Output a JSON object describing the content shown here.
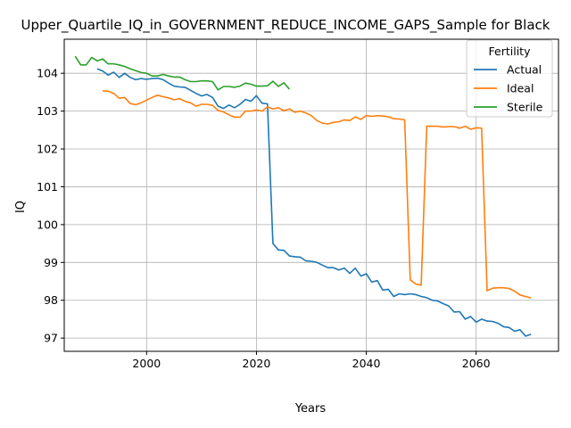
{
  "chart_data": {
    "type": "line",
    "title": "Upper_Quartile_IQ_in_GOVERNMENT_REDUCE_INCOME_GAPS_Sample for Black",
    "xlabel": "Years",
    "ylabel": "IQ",
    "xlim": [
      1985,
      2075
    ],
    "ylim": [
      96.65,
      104.9
    ],
    "xticks": [
      2000,
      2020,
      2040,
      2060
    ],
    "yticks": [
      97,
      98,
      99,
      100,
      101,
      102,
      103,
      104
    ],
    "grid": true,
    "legend": {
      "title": "Fertility",
      "placement": "top-right"
    },
    "series": [
      {
        "name": "Actual",
        "color": "#1f77b4",
        "x": [
          1991,
          1992,
          1993,
          1994,
          1995,
          1996,
          1997,
          1998,
          1999,
          2000,
          2001,
          2002,
          2003,
          2004,
          2005,
          2006,
          2007,
          2008,
          2009,
          2010,
          2011,
          2012,
          2013,
          2014,
          2015,
          2016,
          2017,
          2018,
          2019,
          2020,
          2021,
          2022,
          2023,
          2024,
          2025,
          2026,
          2027,
          2028,
          2029,
          2030,
          2031,
          2032,
          2033,
          2034,
          2035,
          2036,
          2037,
          2038,
          2039,
          2040,
          2041,
          2042,
          2043,
          2044,
          2045,
          2046,
          2047,
          2048,
          2049,
          2050,
          2051,
          2052,
          2053,
          2054,
          2055,
          2056,
          2057,
          2058,
          2059,
          2060,
          2061,
          2062,
          2063,
          2064,
          2065,
          2066,
          2067,
          2068,
          2069,
          2070
        ],
        "values": [
          104.12,
          104.06,
          103.95,
          104.03,
          103.89,
          104.0,
          103.89,
          103.83,
          103.86,
          103.84,
          103.86,
          103.87,
          103.83,
          103.74,
          103.66,
          103.64,
          103.63,
          103.55,
          103.47,
          103.4,
          103.44,
          103.36,
          103.13,
          103.07,
          103.16,
          103.09,
          103.18,
          103.31,
          103.26,
          103.41,
          103.21,
          103.19,
          99.5,
          99.33,
          99.32,
          99.17,
          99.15,
          99.14,
          99.04,
          99.03,
          99.0,
          98.93,
          98.86,
          98.86,
          98.8,
          98.85,
          98.71,
          98.85,
          98.64,
          98.7,
          98.48,
          98.52,
          98.27,
          98.29,
          98.1,
          98.17,
          98.15,
          98.17,
          98.15,
          98.1,
          98.07,
          98.0,
          97.98,
          97.91,
          97.85,
          97.69,
          97.7,
          97.5,
          97.57,
          97.42,
          97.5,
          97.45,
          97.44,
          97.39,
          97.3,
          97.28,
          97.18,
          97.22,
          97.05,
          97.1
        ]
      },
      {
        "name": "Ideal",
        "color": "#ff7f0e",
        "x": [
          1992,
          1993,
          1994,
          1995,
          1996,
          1997,
          1998,
          1999,
          2000,
          2001,
          2002,
          2003,
          2004,
          2005,
          2006,
          2007,
          2008,
          2009,
          2010,
          2011,
          2012,
          2013,
          2014,
          2015,
          2016,
          2017,
          2018,
          2019,
          2020,
          2021,
          2022,
          2023,
          2024,
          2025,
          2026,
          2027,
          2028,
          2029,
          2030,
          2031,
          2032,
          2033,
          2034,
          2035,
          2036,
          2037,
          2038,
          2039,
          2040,
          2041,
          2042,
          2043,
          2044,
          2045,
          2046,
          2047,
          2048,
          2049,
          2050,
          2051,
          2052,
          2053,
          2054,
          2055,
          2056,
          2057,
          2058,
          2059,
          2060,
          2061,
          2062,
          2063,
          2064,
          2065,
          2066,
          2067,
          2068,
          2069,
          2070
        ],
        "values": [
          103.53,
          103.53,
          103.47,
          103.34,
          103.36,
          103.2,
          103.17,
          103.22,
          103.29,
          103.36,
          103.42,
          103.38,
          103.35,
          103.3,
          103.33,
          103.26,
          103.22,
          103.13,
          103.18,
          103.18,
          103.15,
          103.02,
          102.98,
          102.9,
          102.84,
          102.84,
          103.0,
          103.0,
          103.03,
          103.0,
          103.11,
          103.06,
          103.09,
          103.01,
          103.06,
          102.97,
          103.0,
          102.95,
          102.88,
          102.75,
          102.68,
          102.66,
          102.7,
          102.72,
          102.77,
          102.75,
          102.85,
          102.78,
          102.88,
          102.86,
          102.88,
          102.87,
          102.85,
          102.8,
          102.79,
          102.77,
          98.54,
          98.43,
          98.4,
          102.6,
          102.6,
          102.6,
          102.58,
          102.59,
          102.59,
          102.55,
          102.6,
          102.52,
          102.56,
          102.55,
          98.25,
          98.32,
          98.33,
          98.33,
          98.31,
          98.24,
          98.14,
          98.1,
          98.06
        ]
      },
      {
        "name": "Sterile",
        "color": "#2ca02c",
        "x": [
          1987,
          1988,
          1989,
          1990,
          1991,
          1992,
          1993,
          1994,
          1995,
          1996,
          1997,
          1998,
          1999,
          2000,
          2001,
          2002,
          2003,
          2004,
          2005,
          2006,
          2007,
          2008,
          2009,
          2010,
          2011,
          2012,
          2013,
          2014,
          2015,
          2016,
          2017,
          2018,
          2019,
          2020,
          2021,
          2022,
          2023,
          2024,
          2025,
          2026
        ],
        "values": [
          104.45,
          104.22,
          104.22,
          104.42,
          104.33,
          104.38,
          104.25,
          104.25,
          104.22,
          104.18,
          104.12,
          104.07,
          104.02,
          104.0,
          103.93,
          103.93,
          103.97,
          103.93,
          103.9,
          103.9,
          103.83,
          103.78,
          103.78,
          103.8,
          103.8,
          103.78,
          103.56,
          103.65,
          103.65,
          103.63,
          103.66,
          103.74,
          103.71,
          103.66,
          103.66,
          103.67,
          103.79,
          103.65,
          103.75,
          103.58
        ]
      }
    ]
  }
}
